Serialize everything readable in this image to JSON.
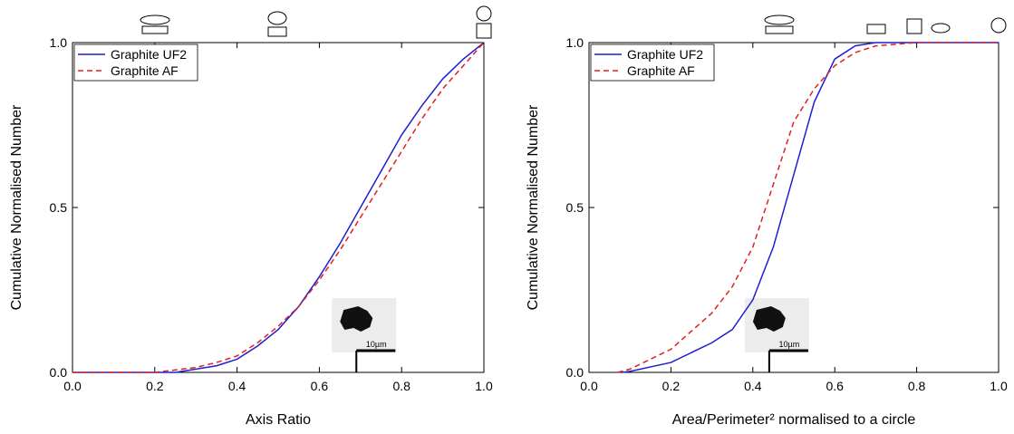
{
  "chart_data": [
    {
      "type": "line",
      "xlabel": "Axis Ratio",
      "ylabel": "Cumulative Normalised Number",
      "xlim": [
        0,
        1
      ],
      "ylim": [
        0,
        1
      ],
      "xticks": [
        {
          "value": 0,
          "label": "0.0"
        },
        0.2,
        0.4,
        0.6,
        0.8,
        {
          "value": 1,
          "label": "1.0"
        }
      ],
      "yticks": [
        {
          "value": 0,
          "label": "0.0"
        },
        0.5,
        {
          "value": 1,
          "label": "1.0"
        }
      ],
      "legend": "upper left",
      "series": [
        {
          "name": "Graphite UF2",
          "color": "#1f1fd0",
          "linestyle": "solid",
          "x": [
            0,
            0.25,
            0.3,
            0.35,
            0.4,
            0.45,
            0.5,
            0.55,
            0.6,
            0.65,
            0.7,
            0.75,
            0.8,
            0.85,
            0.9,
            0.95,
            1.0
          ],
          "values": [
            0,
            0,
            0.01,
            0.02,
            0.04,
            0.08,
            0.13,
            0.2,
            0.29,
            0.39,
            0.5,
            0.61,
            0.72,
            0.81,
            0.89,
            0.95,
            1.0
          ]
        },
        {
          "name": "Graphite AF",
          "color": "#e02020",
          "linestyle": "dashed",
          "x": [
            0,
            0.2,
            0.3,
            0.35,
            0.4,
            0.45,
            0.5,
            0.55,
            0.6,
            0.65,
            0.7,
            0.75,
            0.8,
            0.85,
            0.9,
            0.95,
            1.0
          ],
          "values": [
            0,
            0,
            0.015,
            0.03,
            0.05,
            0.09,
            0.14,
            0.2,
            0.28,
            0.37,
            0.47,
            0.57,
            0.67,
            0.77,
            0.86,
            0.93,
            1.0
          ]
        }
      ],
      "inset": {
        "label": "10µm",
        "x": 0.69
      }
    },
    {
      "type": "line",
      "xlabel": "Area/Perimeter² normalised to a circle",
      "ylabel": "Cumulative Normalised Number",
      "xlim": [
        0,
        1
      ],
      "ylim": [
        0,
        1
      ],
      "xticks": [
        {
          "value": 0,
          "label": "0.0"
        },
        0.2,
        0.4,
        0.6,
        0.8,
        {
          "value": 1,
          "label": "1.0"
        }
      ],
      "yticks": [
        {
          "value": 0,
          "label": "0.0"
        },
        0.5,
        {
          "value": 1,
          "label": "1.0"
        }
      ],
      "legend": "upper left",
      "series": [
        {
          "name": "Graphite UF2",
          "color": "#1f1fd0",
          "linestyle": "solid",
          "x": [
            0.08,
            0.1,
            0.2,
            0.3,
            0.35,
            0.4,
            0.45,
            0.5,
            0.55,
            0.6,
            0.65,
            0.7,
            1.0
          ],
          "values": [
            0,
            0.003,
            0.03,
            0.09,
            0.13,
            0.22,
            0.38,
            0.6,
            0.82,
            0.95,
            0.99,
            1.0,
            1.0
          ]
        },
        {
          "name": "Graphite AF",
          "color": "#e02020",
          "linestyle": "dashed",
          "x": [
            0.07,
            0.1,
            0.2,
            0.3,
            0.35,
            0.4,
            0.45,
            0.5,
            0.55,
            0.6,
            0.65,
            0.7,
            0.8,
            1.0
          ],
          "values": [
            0,
            0.01,
            0.07,
            0.18,
            0.26,
            0.38,
            0.57,
            0.76,
            0.86,
            0.93,
            0.97,
            0.99,
            1.0,
            1.0
          ]
        }
      ],
      "inset": {
        "label": "10µm",
        "x": 0.44
      }
    }
  ]
}
